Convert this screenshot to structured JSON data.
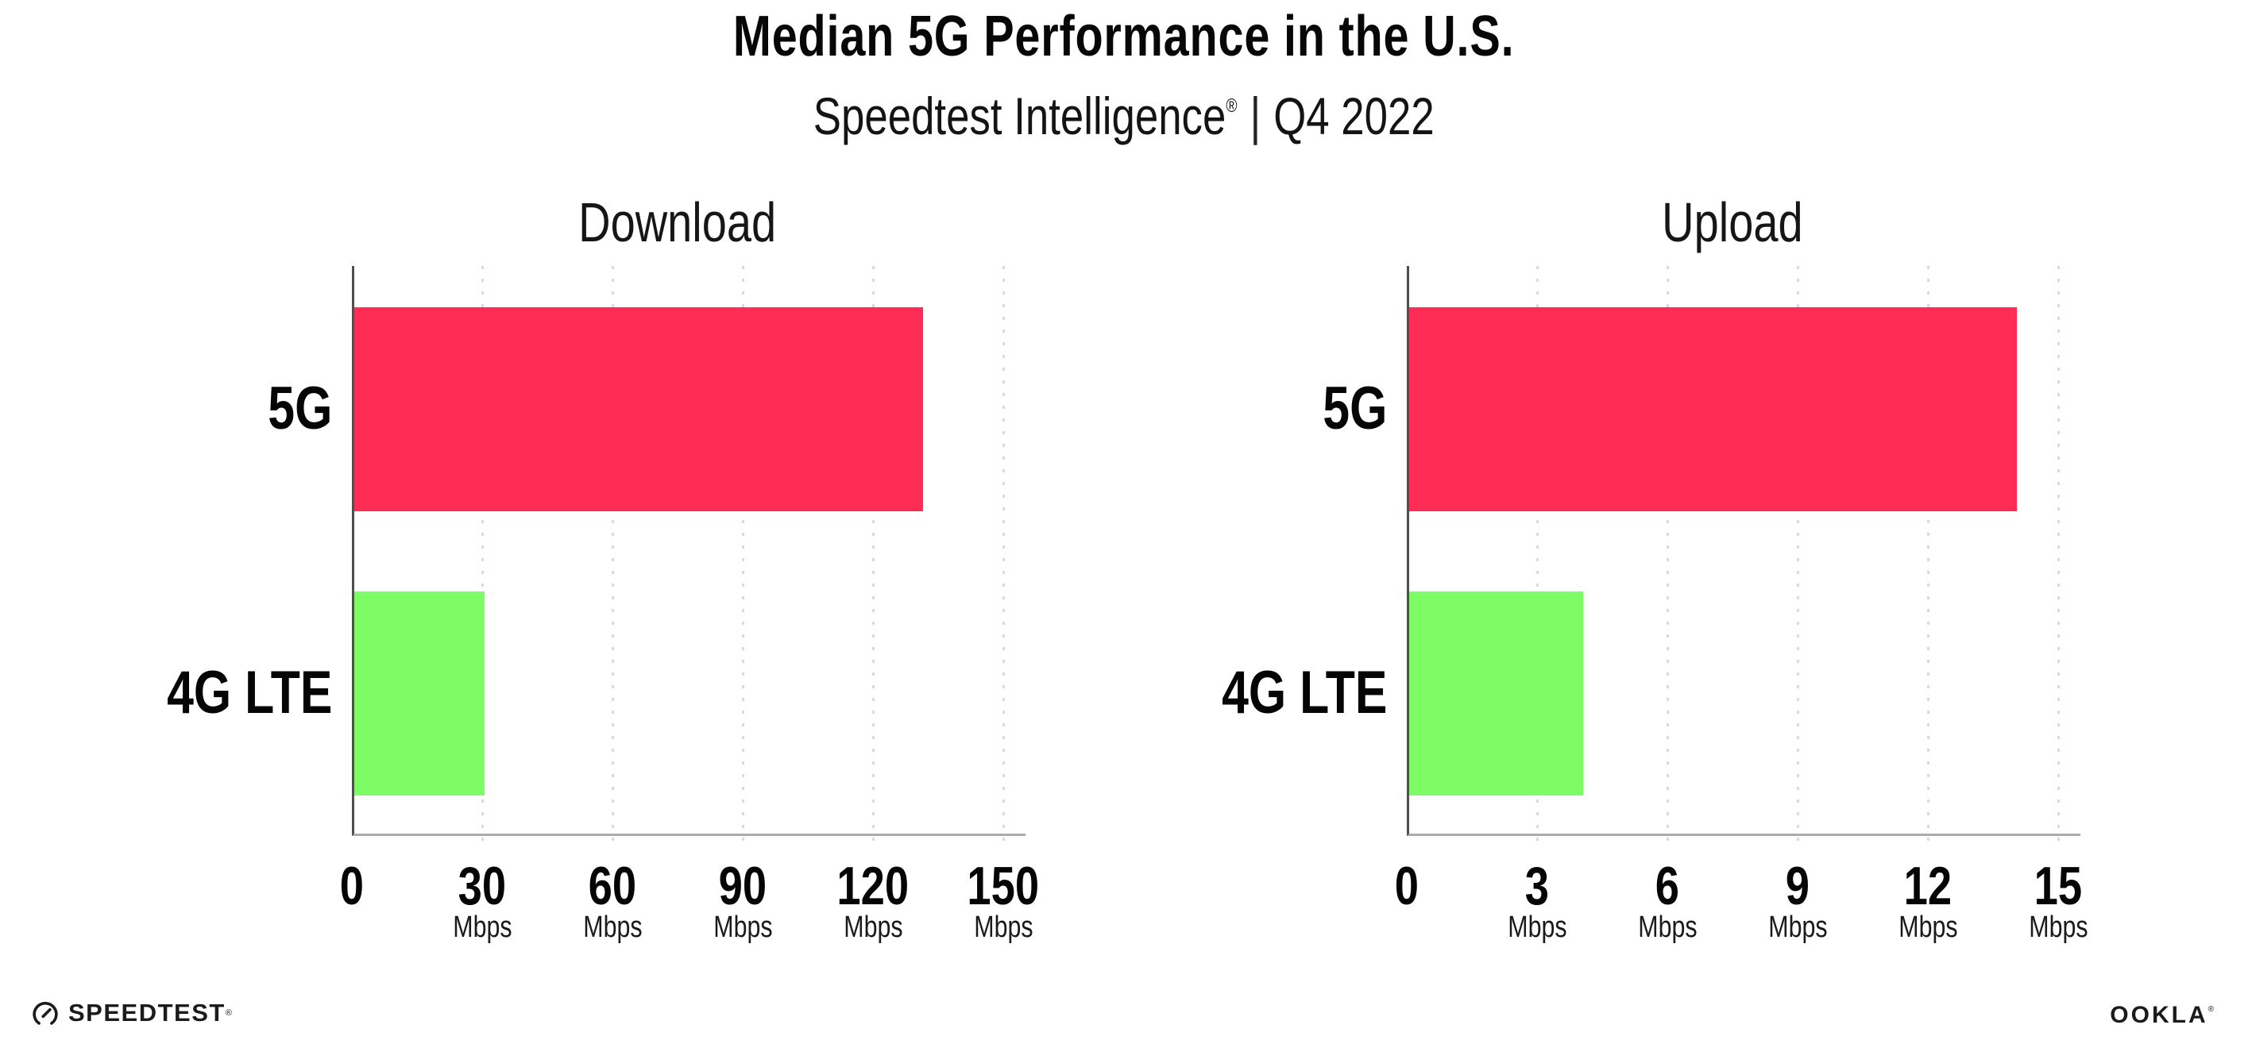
{
  "header": {
    "title": "Median 5G Performance in the U.S.",
    "subtitle_brand": "Speedtest Intelligence",
    "subtitle_reg": "®",
    "subtitle_sep": "|",
    "subtitle_period": "Q4 2022"
  },
  "chart_data": [
    {
      "type": "bar",
      "orientation": "horizontal",
      "title": "Download",
      "categories": [
        "5G",
        "4G LTE"
      ],
      "values": [
        131,
        30
      ],
      "unit": "Mbps",
      "xlim": [
        0,
        150
      ],
      "ticks": [
        0,
        30,
        60,
        90,
        120,
        150
      ],
      "bar_colors": [
        "#FF2D55",
        "#7DFC66"
      ],
      "grid": "dotted-vertical",
      "legend": "none"
    },
    {
      "type": "bar",
      "orientation": "horizontal",
      "title": "Upload",
      "categories": [
        "5G",
        "4G LTE"
      ],
      "values": [
        14,
        4
      ],
      "unit": "Mbps",
      "xlim": [
        0,
        15
      ],
      "ticks": [
        0,
        3,
        6,
        9,
        12,
        15
      ],
      "bar_colors": [
        "#FF2D55",
        "#7DFC66"
      ],
      "grid": "dotted-vertical",
      "legend": "none"
    }
  ],
  "colors": {
    "bar_5g": "#FF2D55",
    "bar_4g_lte": "#7DFC66",
    "gridline": "#d9d9e2",
    "x_axis": "#ababab",
    "y_axis": "#4f4f4f",
    "text": "#0a0a0a"
  },
  "footer": {
    "speedtest_label": "SPEEDTEST",
    "speedtest_reg": "®",
    "ookla_label": "OOKLA",
    "ookla_reg": "®"
  }
}
